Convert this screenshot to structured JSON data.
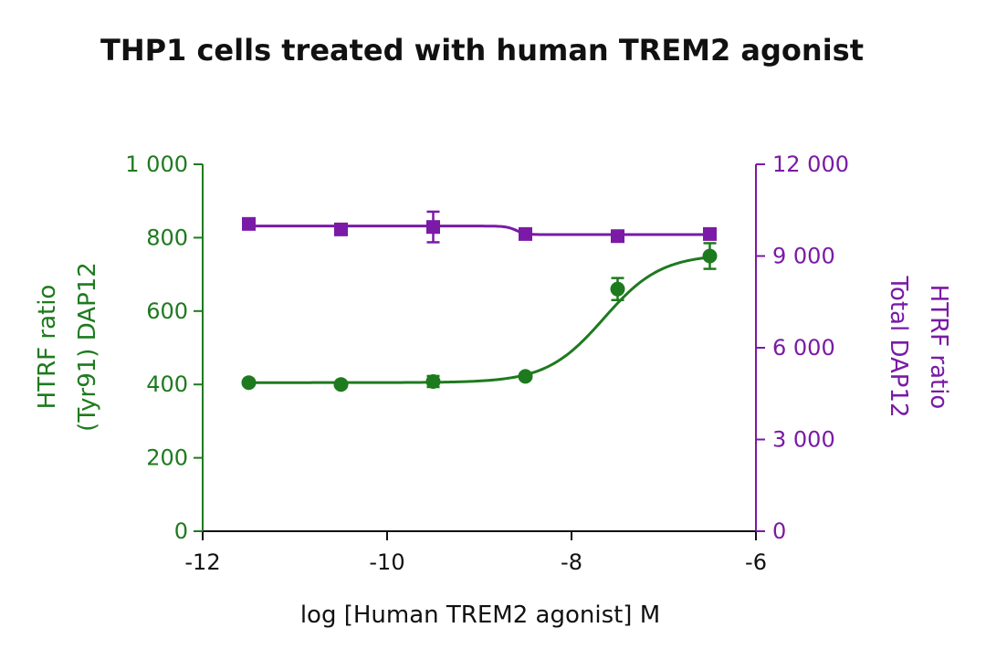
{
  "colors": {
    "series_green": "#1e7a1e",
    "series_purple": "#7a1aa6",
    "axis_black": "#111111"
  },
  "chart_data": {
    "type": "scatter",
    "title": "THP1 cells treated with human TREM2 agonist",
    "xlabel": "log [Human TREM2 agonist] M",
    "ylabel_left_line1": "HTRF ratio",
    "ylabel_left_line2": "(Tyr91) DAP12",
    "ylabel_right_line1": "HTRF ratio",
    "ylabel_right_line2": "Total DAP12",
    "xlim": [
      -12,
      -6
    ],
    "ylim_left": [
      0,
      1000
    ],
    "ylim_right": [
      0,
      12000
    ],
    "x_ticks": [
      -12,
      -10,
      -8,
      -6
    ],
    "x_tick_labels": [
      "-12",
      "-10",
      "-8",
      "-6"
    ],
    "y_left_ticks": [
      0,
      200,
      400,
      600,
      800,
      1000
    ],
    "y_left_tick_labels": [
      "0",
      "200",
      "400",
      "600",
      "800",
      "1 000"
    ],
    "y_right_ticks": [
      0,
      3000,
      6000,
      9000,
      12000
    ],
    "y_right_tick_labels": [
      "0",
      "3 000",
      "6 000",
      "9 000",
      "12 000"
    ],
    "grid": false,
    "legend": "none",
    "series": [
      {
        "axis": "left",
        "marker": "circle",
        "color": "#1e7a1e",
        "x": [
          -11.5,
          -10.5,
          -9.5,
          -8.5,
          -7.5,
          -6.5
        ],
        "y": [
          405,
          400,
          408,
          422,
          660,
          750
        ],
        "error": [
          0,
          0,
          15,
          0,
          30,
          35
        ],
        "fit": {
          "bottom": 405,
          "top": 755,
          "logEC50": -7.65,
          "hill": 1.4
        }
      },
      {
        "axis": "right",
        "marker": "square",
        "color": "#7a1aa6",
        "x": [
          -11.5,
          -10.5,
          -9.5,
          -8.5,
          -7.5,
          -6.5
        ],
        "y": [
          10050,
          9870,
          9950,
          9720,
          9650,
          9720
        ],
        "error": [
          0,
          0,
          500,
          0,
          0,
          0
        ],
        "fit": {
          "bottom": 9700,
          "top": 9980,
          "logEC50": -8.6,
          "hill": -8
        }
      }
    ]
  }
}
